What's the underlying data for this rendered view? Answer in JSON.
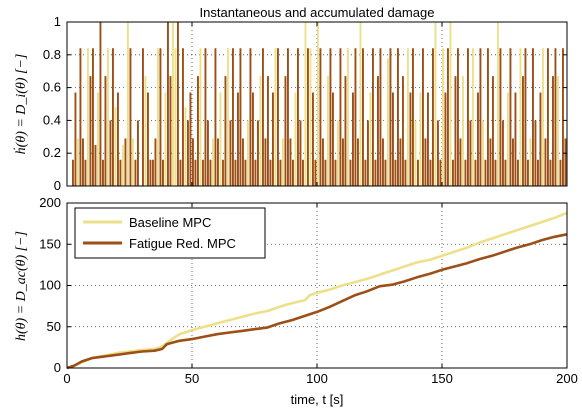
{
  "chart_data": [
    {
      "type": "line",
      "title": "Instantaneous and accumulated damage",
      "ylabel": "ḣ(θ) = D_i(θ) [−]",
      "xlim": [
        0,
        200
      ],
      "ylim": [
        0,
        1
      ],
      "x_ticks": [
        0,
        50,
        100,
        150,
        200
      ],
      "y_ticks": [
        0,
        0.2,
        0.4,
        0.6,
        0.8,
        1
      ],
      "y_tick_labels": [
        "0",
        "0.2",
        "0.4",
        "0.6",
        "0.8",
        "1"
      ],
      "grid": true,
      "levels": [
        0,
        0.08,
        0.16,
        0.25,
        0.29,
        0.4,
        0.48,
        0.57,
        0.67,
        0.78,
        0.84,
        1
      ],
      "series": [
        {
          "color": "#ede08a",
          "pulses": [
            [
              4,
              0.29
            ],
            [
              8,
              0.84
            ],
            [
              12,
              0.57
            ],
            [
              16,
              0.84
            ],
            [
              19,
              0.48
            ],
            [
              22,
              0.25
            ],
            [
              24,
              1
            ],
            [
              26,
              0.29
            ],
            [
              31,
              0.67
            ],
            [
              36,
              0.84
            ],
            [
              39,
              0.57
            ],
            [
              42,
              1
            ],
            [
              43,
              0.84
            ],
            [
              47,
              0.48
            ],
            [
              53,
              0.84
            ],
            [
              58,
              0.29
            ],
            [
              61,
              0.57
            ],
            [
              64,
              0.84
            ],
            [
              72,
              0.4
            ],
            [
              77,
              0.67
            ],
            [
              83,
              0.84
            ],
            [
              86,
              0.29
            ],
            [
              91,
              0.57
            ],
            [
              95,
              1
            ],
            [
              97,
              0.84
            ],
            [
              100,
              1
            ],
            [
              104,
              0.67
            ],
            [
              108,
              0.4
            ],
            [
              112,
              0.84
            ],
            [
              117,
              1
            ],
            [
              121,
              0.57
            ],
            [
              128,
              0.78
            ],
            [
              136,
              0.84
            ],
            [
              139,
              0.4
            ],
            [
              141,
              0.57
            ],
            [
              147,
              1
            ],
            [
              150,
              0.84
            ],
            [
              153,
              1
            ],
            [
              158,
              0.67
            ],
            [
              162,
              0.84
            ],
            [
              166,
              0.4
            ],
            [
              172,
              1
            ],
            [
              176,
              0.57
            ],
            [
              181,
              0.84
            ],
            [
              185,
              0.29
            ],
            [
              190,
              0.84
            ],
            [
              196,
              0.67
            ]
          ]
        },
        {
          "color": "#9c4f17",
          "pulses": [
            [
              2,
              0.16
            ],
            [
              3,
              0.57
            ],
            [
              5,
              0.84
            ],
            [
              6,
              0.29
            ],
            [
              7,
              0.16
            ],
            [
              9,
              0.67
            ],
            [
              10,
              0.84
            ],
            [
              11,
              0.25
            ],
            [
              13,
              1
            ],
            [
              14,
              0.16
            ],
            [
              15,
              0.67
            ],
            [
              17,
              0.4
            ],
            [
              18,
              0.84
            ],
            [
              20,
              0.57
            ],
            [
              21,
              0.16
            ],
            [
              23,
              0.29
            ],
            [
              25,
              0.84
            ],
            [
              27,
              0.16
            ],
            [
              28,
              0.4
            ],
            [
              30,
              0.84
            ],
            [
              32,
              0.57
            ],
            [
              33,
              0.16
            ],
            [
              34,
              0.16
            ],
            [
              35,
              0.29
            ],
            [
              37,
              0.84
            ],
            [
              38,
              0.16
            ],
            [
              40,
              1
            ],
            [
              41,
              0.67
            ],
            [
              44,
              1
            ],
            [
              45,
              0.16
            ],
            [
              46,
              0.84
            ],
            [
              48,
              0.4
            ],
            [
              49,
              0.57
            ],
            [
              50,
              0.29
            ],
            [
              51,
              0.16
            ],
            [
              52,
              0.67
            ],
            [
              54,
              0.16
            ],
            [
              55,
              0.84
            ],
            [
              56,
              0.4
            ],
            [
              57,
              0.16
            ],
            [
              59,
              0.84
            ],
            [
              60,
              0.29
            ],
            [
              62,
              0.16
            ],
            [
              63,
              0.67
            ],
            [
              65,
              0.4
            ],
            [
              66,
              0.84
            ],
            [
              67,
              0.16
            ],
            [
              68,
              0.57
            ],
            [
              69,
              0.84
            ],
            [
              70,
              0.29
            ],
            [
              71,
              0.16
            ],
            [
              73,
              0.84
            ],
            [
              74,
              0.57
            ],
            [
              75,
              0.16
            ],
            [
              76,
              0.4
            ],
            [
              78,
              0.84
            ],
            [
              79,
              0.29
            ],
            [
              80,
              0.67
            ],
            [
              81,
              0.16
            ],
            [
              82,
              0.57
            ],
            [
              84,
              0.84
            ],
            [
              85,
              0.16
            ],
            [
              87,
              0.67
            ],
            [
              88,
              0.84
            ],
            [
              89,
              0.29
            ],
            [
              90,
              0.16
            ],
            [
              92,
              0.84
            ],
            [
              93,
              0.4
            ],
            [
              94,
              0.16
            ],
            [
              96,
              0.84
            ],
            [
              98,
              0.57
            ],
            [
              99,
              0.16
            ],
            [
              101,
              0.84
            ],
            [
              102,
              0.29
            ],
            [
              103,
              0.16
            ],
            [
              105,
              0.84
            ],
            [
              106,
              0.57
            ],
            [
              107,
              0.16
            ],
            [
              109,
              0.84
            ],
            [
              110,
              0.29
            ],
            [
              111,
              0.67
            ],
            [
              113,
              0.16
            ],
            [
              114,
              0.57
            ],
            [
              115,
              0.84
            ],
            [
              116,
              0.29
            ],
            [
              118,
              0.84
            ],
            [
              119,
              0.16
            ],
            [
              120,
              0.4
            ],
            [
              122,
              0.84
            ],
            [
              123,
              0.16
            ],
            [
              124,
              0.67
            ],
            [
              125,
              0.84
            ],
            [
              126,
              0.29
            ],
            [
              127,
              0.16
            ],
            [
              129,
              0.84
            ],
            [
              130,
              0.57
            ],
            [
              131,
              0.16
            ],
            [
              132,
              0.84
            ],
            [
              133,
              0.29
            ],
            [
              134,
              0.67
            ],
            [
              135,
              0.16
            ],
            [
              137,
              0.57
            ],
            [
              138,
              0.84
            ],
            [
              140,
              0.16
            ],
            [
              142,
              0.84
            ],
            [
              143,
              0.29
            ],
            [
              144,
              0.57
            ],
            [
              145,
              0.16
            ],
            [
              146,
              0.84
            ],
            [
              148,
              0.4
            ],
            [
              149,
              0.16
            ],
            [
              151,
              0.57
            ],
            [
              152,
              0.84
            ],
            [
              154,
              0.16
            ],
            [
              155,
              0.67
            ],
            [
              156,
              0.84
            ],
            [
              157,
              0.29
            ],
            [
              159,
              0.16
            ],
            [
              160,
              0.84
            ],
            [
              161,
              0.4
            ],
            [
              163,
              0.16
            ],
            [
              164,
              0.57
            ],
            [
              165,
              0.84
            ],
            [
              167,
              0.16
            ],
            [
              168,
              0.84
            ],
            [
              169,
              0.29
            ],
            [
              170,
              0.67
            ],
            [
              171,
              0.16
            ],
            [
              173,
              0.84
            ],
            [
              174,
              0.4
            ],
            [
              175,
              0.16
            ],
            [
              177,
              0.84
            ],
            [
              178,
              0.29
            ],
            [
              179,
              0.57
            ],
            [
              180,
              0.16
            ],
            [
              182,
              0.67
            ],
            [
              183,
              0.84
            ],
            [
              184,
              0.16
            ],
            [
              186,
              0.84
            ],
            [
              187,
              0.4
            ],
            [
              188,
              0.16
            ],
            [
              189,
              0.57
            ],
            [
              191,
              0.29
            ],
            [
              192,
              0.84
            ],
            [
              193,
              0.16
            ],
            [
              194,
              0.67
            ],
            [
              195,
              0.84
            ],
            [
              197,
              0.16
            ],
            [
              198,
              0.84
            ],
            [
              199,
              0.29
            ]
          ]
        }
      ]
    },
    {
      "type": "line",
      "ylabel": "h(θ) = D_ac(θ) [−]",
      "xlabel": "time, t  [s]",
      "xlim": [
        0,
        200
      ],
      "ylim": [
        0,
        200
      ],
      "x_ticks": [
        0,
        50,
        100,
        150,
        200
      ],
      "y_ticks": [
        0,
        50,
        100,
        150,
        200
      ],
      "grid": true,
      "legend_position": "top-left",
      "series": [
        {
          "name": "Baseline MPC",
          "color": "#ede08a",
          "x": [
            0,
            3,
            6,
            10,
            15,
            20,
            25,
            30,
            35,
            38,
            42,
            45,
            50,
            55,
            60,
            65,
            70,
            75,
            80,
            85,
            88,
            92,
            95,
            97,
            100,
            105,
            110,
            115,
            120,
            125,
            130,
            135,
            140,
            145,
            150,
            155,
            160,
            165,
            170,
            175,
            180,
            185,
            190,
            195,
            200
          ],
          "y": [
            0,
            3,
            7,
            12,
            15,
            18,
            20,
            22,
            23,
            26,
            35,
            41,
            46,
            50,
            54,
            58,
            62,
            66,
            69,
            74,
            77,
            80,
            82,
            88,
            91,
            95,
            100,
            104,
            108,
            113,
            118,
            123,
            128,
            131,
            136,
            141,
            146,
            152,
            157,
            162,
            167,
            172,
            177,
            182,
            188
          ]
        },
        {
          "name": "Fatigue Red. MPC",
          "color": "#9c4f17",
          "x": [
            0,
            3,
            6,
            10,
            15,
            20,
            25,
            30,
            35,
            38,
            40,
            45,
            50,
            55,
            60,
            65,
            70,
            75,
            80,
            85,
            90,
            95,
            100,
            105,
            110,
            115,
            120,
            125,
            130,
            135,
            140,
            145,
            150,
            155,
            160,
            165,
            170,
            175,
            180,
            185,
            190,
            195,
            200
          ],
          "y": [
            0,
            3,
            8,
            12,
            14,
            16,
            18,
            20,
            21,
            23,
            29,
            33,
            35,
            38,
            41,
            43,
            45,
            47,
            49,
            54,
            58,
            63,
            68,
            74,
            81,
            88,
            93,
            99,
            101,
            105,
            110,
            114,
            119,
            123,
            127,
            132,
            136,
            141,
            146,
            150,
            155,
            159,
            162
          ]
        }
      ]
    }
  ]
}
